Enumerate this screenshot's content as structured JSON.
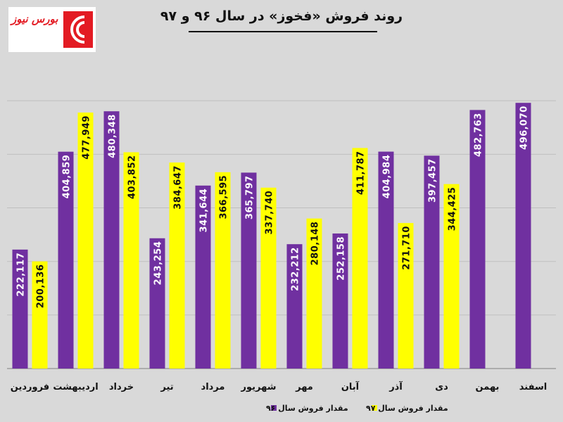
{
  "logo": {
    "text": "بورس نیوز"
  },
  "chart_data": {
    "type": "bar",
    "title": "روند فروش «فخوز» در سال ۹۶ و ۹۷",
    "categories": [
      "فروردین",
      "اردیبهشت",
      "خرداد",
      "تیر",
      "مرداد",
      "شهریور",
      "مهر",
      "آبان",
      "آذر",
      "دی",
      "بهمن",
      "اسفند"
    ],
    "series": [
      {
        "name": "مقدار فروش سال ۹۶",
        "color": "#7030a0",
        "values": [
          222117,
          404859,
          480348,
          243254,
          341644,
          365797,
          232212,
          252158,
          404984,
          397457,
          482763,
          496070
        ],
        "labels": [
          "222,117",
          "404,859",
          "480,348",
          "243,254",
          "341,644",
          "365,797",
          "232,212",
          "252,158",
          "404,984",
          "397,457",
          "482,763",
          "496,070"
        ]
      },
      {
        "name": "مقدار فروش سال ۹۷",
        "color": "#ffff00",
        "values": [
          200136,
          477949,
          403852,
          384647,
          366595,
          337740,
          280148,
          411787,
          271710,
          344425,
          null,
          null
        ],
        "labels": [
          "200,136",
          "477,949",
          "403,852",
          "384,647",
          "366,595",
          "337,740",
          "280,148",
          "411,787",
          "271,710",
          "344,425",
          null,
          null
        ]
      }
    ],
    "ylim": [
      0,
      500000
    ],
    "grid": true,
    "legend_position": "bottom"
  }
}
